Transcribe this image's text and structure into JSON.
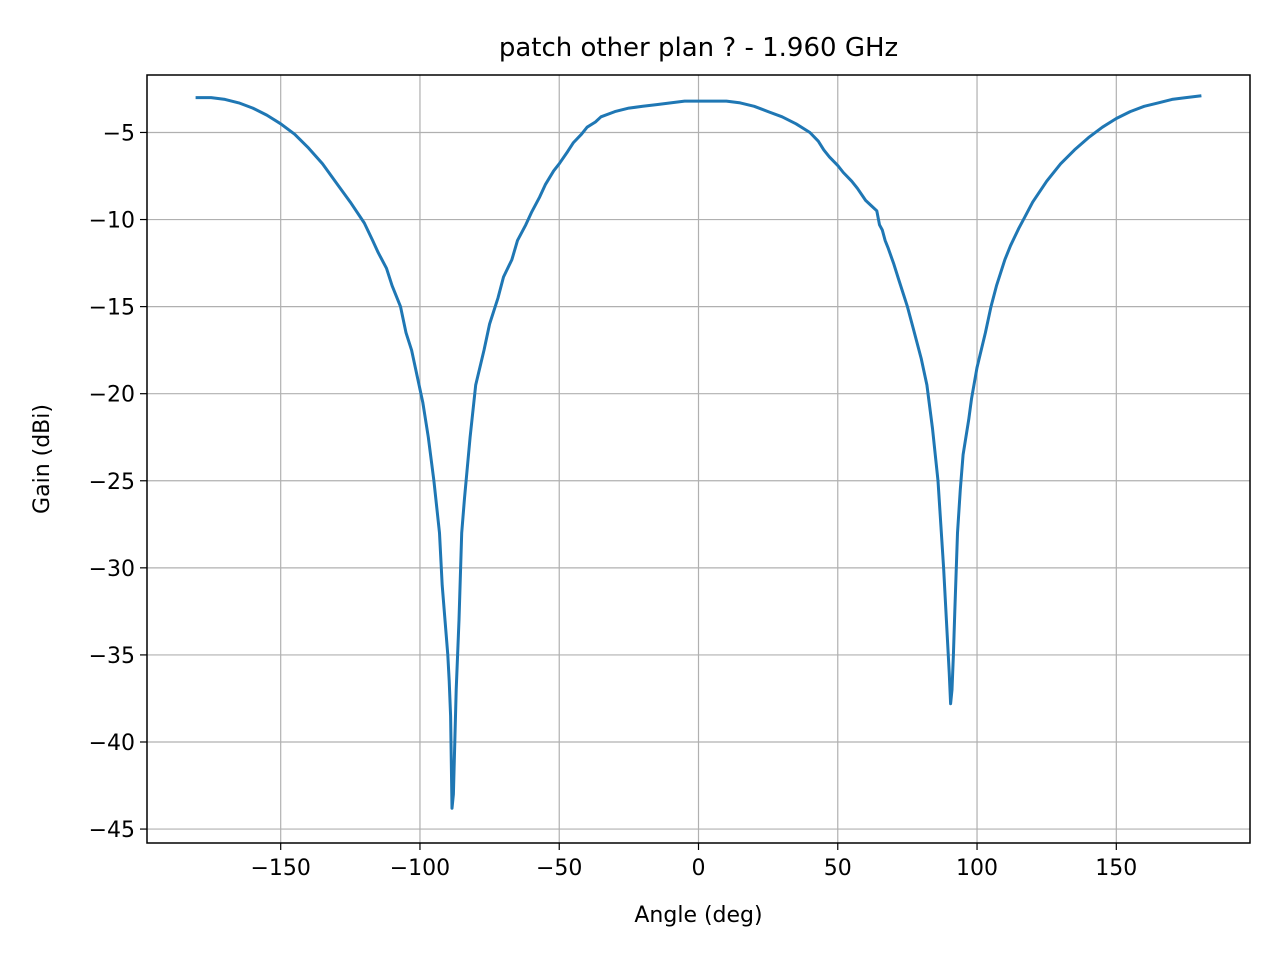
{
  "chart_data": {
    "type": "line",
    "title": "patch other plan ? - 1.960 GHz",
    "xlabel": "Angle (deg)",
    "ylabel": "Gain (dBi)",
    "xlim": [
      -198,
      198
    ],
    "ylim": [
      -45.8,
      -1.7
    ],
    "xticks": [
      -150,
      -100,
      -50,
      0,
      50,
      100,
      150
    ],
    "xtick_labels": [
      "−150",
      "−100",
      "−50",
      "0",
      "50",
      "100",
      "150"
    ],
    "yticks": [
      -5,
      -10,
      -15,
      -20,
      -25,
      -30,
      -35,
      -40,
      -45
    ],
    "ytick_labels": [
      "−5",
      "−10",
      "−15",
      "−20",
      "−25",
      "−30",
      "−35",
      "−40",
      "−45"
    ],
    "grid": true,
    "legend": "none",
    "series": [
      {
        "color": "#1f77b4",
        "x": [
          -180,
          -175,
          -170,
          -165,
          -160,
          -155,
          -150,
          -145,
          -140,
          -135,
          -130,
          -125,
          -120,
          -117,
          -115,
          -112,
          -110,
          -107,
          -105,
          -103,
          -101,
          -99,
          -97,
          -95,
          -93,
          -92,
          -91,
          -90,
          -89.5,
          -89,
          -88.5,
          -88,
          -87.5,
          -87,
          -86,
          -85,
          -84,
          -82,
          -80,
          -77,
          -75,
          -72,
          -70,
          -67,
          -65,
          -62,
          -60,
          -57,
          -55,
          -52,
          -50,
          -47,
          -45,
          -42,
          -40,
          -37,
          -35,
          -30,
          -25,
          -20,
          -15,
          -10,
          -5,
          0,
          5,
          10,
          15,
          20,
          25,
          30,
          35,
          40,
          43,
          45,
          47,
          50,
          52,
          55,
          57,
          60,
          62,
          64,
          65,
          66,
          67,
          68,
          70,
          72,
          75,
          77,
          80,
          82,
          84,
          86,
          87,
          88,
          89,
          90,
          90.5,
          91,
          91.5,
          92,
          93,
          94,
          95,
          97,
          98,
          100,
          103,
          105,
          107,
          110,
          112,
          115,
          117,
          120,
          125,
          130,
          135,
          140,
          145,
          150,
          155,
          160,
          165,
          170,
          175,
          180
        ],
        "y": [
          -3.0,
          -3.0,
          -3.1,
          -3.3,
          -3.6,
          -4.0,
          -4.5,
          -5.1,
          -5.9,
          -6.8,
          -7.9,
          -9.0,
          -10.2,
          -11.2,
          -11.9,
          -12.8,
          -13.8,
          -15.0,
          -16.5,
          -17.5,
          -19.0,
          -20.5,
          -22.5,
          -25.0,
          -28.0,
          -31.0,
          -33.0,
          -35.0,
          -36.5,
          -38.5,
          -43.8,
          -43.0,
          -40.0,
          -37.0,
          -33.0,
          -28.0,
          -26.0,
          -22.5,
          -19.5,
          -17.5,
          -16.0,
          -14.5,
          -13.3,
          -12.3,
          -11.2,
          -10.3,
          -9.6,
          -8.7,
          -8.0,
          -7.2,
          -6.8,
          -6.1,
          -5.6,
          -5.1,
          -4.7,
          -4.4,
          -4.1,
          -3.8,
          -3.6,
          -3.5,
          -3.4,
          -3.3,
          -3.2,
          -3.2,
          -3.2,
          -3.2,
          -3.3,
          -3.5,
          -3.8,
          -4.1,
          -4.5,
          -5.0,
          -5.5,
          -6.0,
          -6.4,
          -6.9,
          -7.3,
          -7.8,
          -8.2,
          -8.9,
          -9.2,
          -9.5,
          -10.3,
          -10.6,
          -11.2,
          -11.6,
          -12.5,
          -13.5,
          -15.0,
          -16.2,
          -18.0,
          -19.5,
          -22.0,
          -25.0,
          -27.5,
          -30.0,
          -33.0,
          -36.0,
          -37.8,
          -37.0,
          -35.0,
          -32.5,
          -28.0,
          -25.5,
          -23.5,
          -21.5,
          -20.3,
          -18.5,
          -16.5,
          -15.0,
          -13.8,
          -12.3,
          -11.5,
          -10.5,
          -9.9,
          -9.0,
          -7.8,
          -6.8,
          -6.0,
          -5.3,
          -4.7,
          -4.2,
          -3.8,
          -3.5,
          -3.3,
          -3.1,
          -3.0,
          -2.9
        ]
      }
    ]
  }
}
